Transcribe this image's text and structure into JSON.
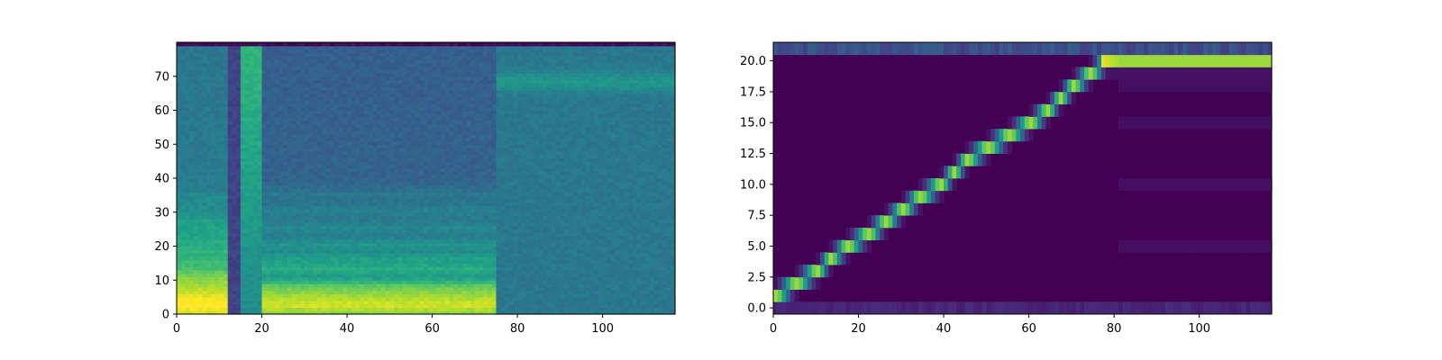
{
  "chart_data": [
    {
      "type": "heatmap",
      "title": "",
      "xlabel": "",
      "ylabel": "",
      "description_of_content": "mel spectrogram",
      "xlim": [
        0,
        117
      ],
      "ylim": [
        0,
        80
      ],
      "x_ticks": [
        0,
        20,
        40,
        60,
        80,
        100
      ],
      "y_ticks": [
        0,
        10,
        20,
        30,
        40,
        50,
        60,
        70
      ],
      "x_tick_labels": [
        "0",
        "20",
        "40",
        "60",
        "80",
        "100"
      ],
      "y_tick_labels": [
        "0",
        "10",
        "20",
        "30",
        "40",
        "50",
        "60",
        "70"
      ],
      "colormap": "viridis",
      "segments": [
        {
          "x_start": 0,
          "x_end": 12,
          "kind": "voiced",
          "harmonic_rows": [
            2,
            4,
            6,
            8,
            10,
            12,
            15,
            18,
            21,
            24,
            27
          ],
          "base_level": 0.45
        },
        {
          "x_start": 12,
          "x_end": 15,
          "kind": "silence",
          "base_level": 0.25
        },
        {
          "x_start": 15,
          "x_end": 20,
          "kind": "fricative",
          "base_level": 0.48
        },
        {
          "x_start": 20,
          "x_end": 75,
          "kind": "voiced",
          "harmonic_rows": [
            2,
            4,
            6,
            8,
            13,
            16,
            20,
            25,
            30,
            36
          ],
          "base_level": 0.35
        },
        {
          "x_start": 75,
          "x_end": 117,
          "kind": "silence",
          "band_row": 68,
          "base_level": 0.4
        }
      ]
    },
    {
      "type": "heatmap",
      "title": "",
      "xlabel": "",
      "ylabel": "",
      "description_of_content": "attention alignment",
      "xlim": [
        0,
        117
      ],
      "ylim": [
        -0.5,
        21.5
      ],
      "x_ticks": [
        0,
        20,
        40,
        60,
        80,
        100
      ],
      "y_ticks": [
        0.0,
        2.5,
        5.0,
        7.5,
        10.0,
        12.5,
        15.0,
        17.5,
        20.0
      ],
      "x_tick_labels": [
        "0",
        "20",
        "40",
        "60",
        "80",
        "100"
      ],
      "y_tick_labels": [
        "0.0",
        "2.5",
        "5.0",
        "7.5",
        "10.0",
        "12.5",
        "15.0",
        "17.5",
        "20.0"
      ],
      "colormap": "viridis",
      "alignment_path": [
        {
          "x": 0,
          "y": 1
        },
        {
          "x": 5,
          "y": 2
        },
        {
          "x": 10,
          "y": 3
        },
        {
          "x": 13,
          "y": 4
        },
        {
          "x": 17,
          "y": 5
        },
        {
          "x": 22,
          "y": 6
        },
        {
          "x": 26,
          "y": 7
        },
        {
          "x": 30,
          "y": 8
        },
        {
          "x": 34,
          "y": 9
        },
        {
          "x": 39,
          "y": 10
        },
        {
          "x": 42,
          "y": 11
        },
        {
          "x": 45,
          "y": 12
        },
        {
          "x": 50,
          "y": 13
        },
        {
          "x": 55,
          "y": 14
        },
        {
          "x": 60,
          "y": 15
        },
        {
          "x": 64,
          "y": 16
        },
        {
          "x": 67,
          "y": 17
        },
        {
          "x": 70,
          "y": 18
        },
        {
          "x": 74,
          "y": 19
        },
        {
          "x": 78,
          "y": 20
        }
      ],
      "final_row": 20,
      "final_row_start": 77
    }
  ]
}
